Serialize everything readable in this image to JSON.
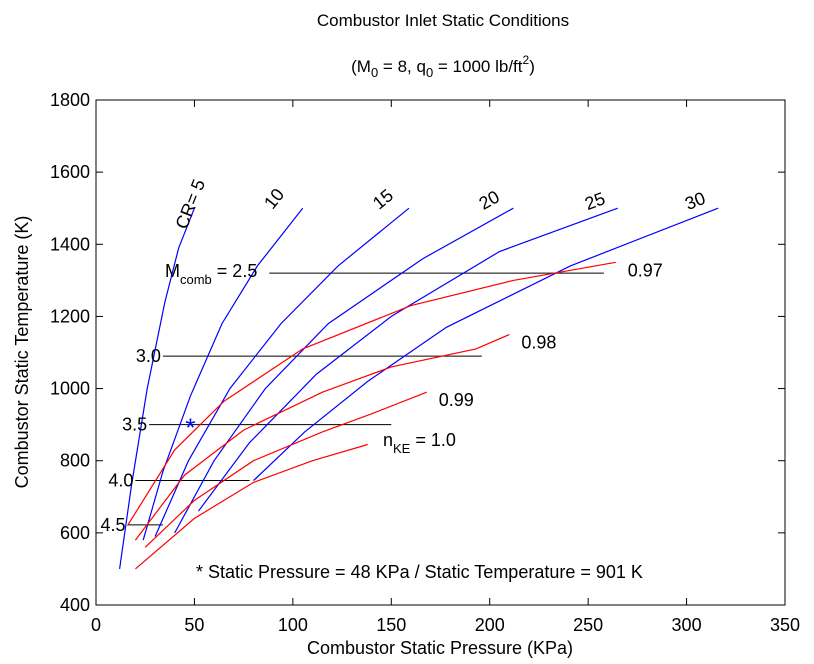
{
  "chart_data": {
    "type": "line",
    "title": "Combustor Inlet Static Conditions",
    "subtitle": {
      "open": "(M",
      "m_sub": "0",
      "mid": " = 8, q",
      "q_sub": "0",
      "after": " = 1000 lb/ft",
      "sup": "2",
      "close": ")"
    },
    "xlabel": "Combustor Static Pressure (KPa)",
    "ylabel": "Combustor Static Temperature (K)",
    "xlim": [
      0,
      350
    ],
    "ylim": [
      400,
      1800
    ],
    "xticks": [
      "0",
      "50",
      "100",
      "150",
      "200",
      "250",
      "300",
      "350"
    ],
    "yticks": [
      "400",
      "600",
      "800",
      "1000",
      "1200",
      "1400",
      "1600",
      "1800"
    ],
    "grid": false,
    "colors": {
      "cr": "#0000ff",
      "nke": "#ff0000",
      "mach": "#000000",
      "marker": "#0000ff"
    },
    "cr_series": [
      {
        "label": "CR= 5",
        "points": [
          [
            12,
            500
          ],
          [
            18,
            730
          ],
          [
            26,
            1000
          ],
          [
            35,
            1240
          ],
          [
            42,
            1390
          ],
          [
            50,
            1500
          ]
        ]
      },
      {
        "label": "10",
        "points": [
          [
            24,
            580
          ],
          [
            34,
            770
          ],
          [
            48,
            980
          ],
          [
            64,
            1180
          ],
          [
            82,
            1340
          ],
          [
            105,
            1500
          ]
        ]
      },
      {
        "label": "15",
        "points": [
          [
            30,
            590
          ],
          [
            47,
            800
          ],
          [
            68,
            1000
          ],
          [
            94,
            1180
          ],
          [
            123,
            1340
          ],
          [
            159,
            1500
          ]
        ]
      },
      {
        "label": "20",
        "points": [
          [
            40,
            600
          ],
          [
            60,
            800
          ],
          [
            86,
            1000
          ],
          [
            118,
            1180
          ],
          [
            166,
            1360
          ],
          [
            212,
            1500
          ]
        ]
      },
      {
        "label": "25",
        "points": [
          [
            52,
            660
          ],
          [
            78,
            850
          ],
          [
            112,
            1040
          ],
          [
            150,
            1200
          ],
          [
            205,
            1380
          ],
          [
            265,
            1500
          ]
        ]
      },
      {
        "label": "30",
        "points": [
          [
            80,
            745
          ],
          [
            106,
            880
          ],
          [
            138,
            1020
          ],
          [
            178,
            1170
          ],
          [
            241,
            1340
          ],
          [
            316,
            1500
          ]
        ]
      }
    ],
    "nke_series": [
      {
        "label": "0.97",
        "points": [
          [
            16,
            620
          ],
          [
            40,
            830
          ],
          [
            65,
            965
          ],
          [
            105,
            1110
          ],
          [
            160,
            1230
          ],
          [
            212,
            1300
          ],
          [
            264,
            1350
          ]
        ]
      },
      {
        "label": "0.98",
        "points": [
          [
            20,
            580
          ],
          [
            45,
            760
          ],
          [
            75,
            885
          ],
          [
            115,
            990
          ],
          [
            150,
            1060
          ],
          [
            193,
            1110
          ],
          [
            210,
            1150
          ]
        ]
      },
      {
        "label": "0.99",
        "points": [
          [
            25,
            560
          ],
          [
            50,
            690
          ],
          [
            80,
            800
          ],
          [
            115,
            880
          ],
          [
            140,
            930
          ],
          [
            168,
            990
          ]
        ]
      },
      {
        "label": "1.0",
        "points": [
          [
            20,
            500
          ],
          [
            50,
            640
          ],
          [
            80,
            740
          ],
          [
            110,
            800
          ],
          [
            138,
            845
          ]
        ]
      }
    ],
    "mach_lines": [
      {
        "label": "2.5",
        "y": 1320,
        "x0": 88,
        "x1": 258
      },
      {
        "label": "3.0",
        "y": 1090,
        "x0": 34,
        "x1": 196
      },
      {
        "label": "3.5",
        "y": 900,
        "x0": 27,
        "x1": 150
      },
      {
        "label": "4.0",
        "y": 745,
        "x0": 20,
        "x1": 78
      },
      {
        "label": "4.5",
        "y": 622,
        "x0": 16,
        "x1": 34
      }
    ],
    "marker": {
      "x": 48,
      "y": 901,
      "symbol": "*"
    },
    "annotations": {
      "mcomb": {
        "base": "M",
        "sub": "comb",
        "rest": " = 2.5"
      },
      "nke": {
        "base": "n",
        "sub": "KE",
        "rest": " = 1.0"
      },
      "note": "* Static Pressure = 48 KPa / Static Temperature = 901 K"
    }
  }
}
